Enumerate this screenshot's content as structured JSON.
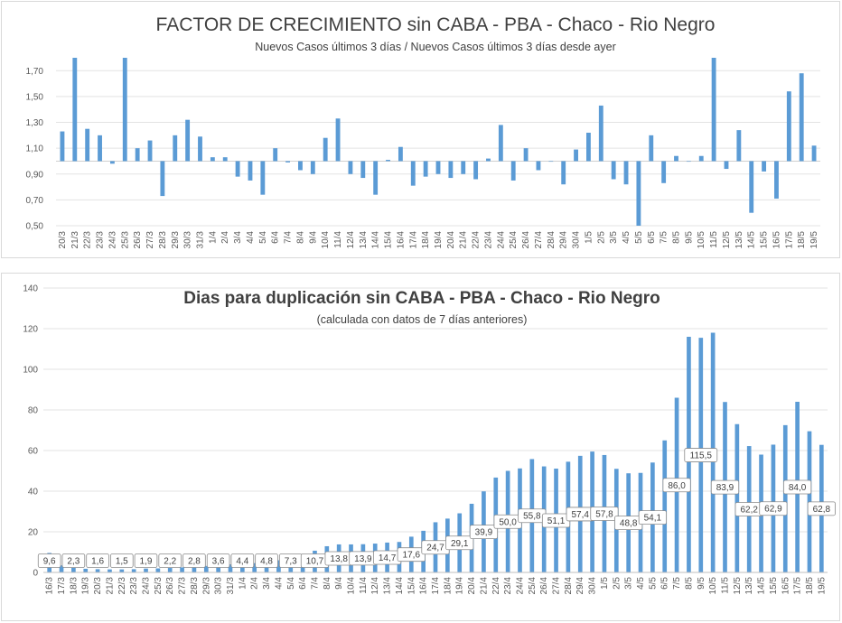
{
  "chart_data": [
    {
      "type": "bar",
      "title": "FACTOR DE CRECIMIENTO sin CABA - PBA - Chaco - Rio Negro",
      "subtitle": "Nuevos Casos últimos 3 días / Nuevos Casos últimos 3 días desde ayer",
      "baseline": 1.0,
      "ylim": [
        0.5,
        1.8
      ],
      "yticks": [
        "0,50",
        "0,70",
        "0,90",
        "1,10",
        "1,30",
        "1,50",
        "1,70"
      ],
      "ytick_values": [
        0.5,
        0.7,
        0.9,
        1.1,
        1.3,
        1.5,
        1.7
      ],
      "grid": true,
      "color": "#5b9bd5",
      "categories": [
        "20/3",
        "21/3",
        "22/3",
        "23/3",
        "24/3",
        "25/3",
        "26/3",
        "27/3",
        "28/3",
        "29/3",
        "30/3",
        "31/3",
        "1/4",
        "2/4",
        "3/4",
        "4/4",
        "5/4",
        "6/4",
        "7/4",
        "8/4",
        "9/4",
        "10/4",
        "11/4",
        "12/4",
        "13/4",
        "14/4",
        "15/4",
        "16/4",
        "17/4",
        "18/4",
        "19/4",
        "20/4",
        "21/4",
        "22/4",
        "23/4",
        "24/4",
        "25/4",
        "26/4",
        "27/4",
        "28/4",
        "29/4",
        "30/4",
        "1/5",
        "2/5",
        "3/5",
        "4/5",
        "5/5",
        "6/5",
        "7/5",
        "8/5",
        "9/5",
        "10/5",
        "11/5",
        "12/5",
        "13/5",
        "14/5",
        "15/5",
        "16/5",
        "17/5",
        "18/5",
        "19/5"
      ],
      "values": [
        1.23,
        1.8,
        1.25,
        1.2,
        0.98,
        1.8,
        1.1,
        1.16,
        0.73,
        1.2,
        1.32,
        1.19,
        1.03,
        1.03,
        0.88,
        0.85,
        0.74,
        1.1,
        0.99,
        0.93,
        0.9,
        1.18,
        1.33,
        0.9,
        0.87,
        0.74,
        1.01,
        1.11,
        0.81,
        0.88,
        0.9,
        0.87,
        0.9,
        0.86,
        1.02,
        1.28,
        0.85,
        1.1,
        0.93,
        1.0,
        0.82,
        1.09,
        1.22,
        1.43,
        0.86,
        0.82,
        0.5,
        1.2,
        0.83,
        1.04,
        1.0,
        1.04,
        1.8,
        0.94,
        1.24,
        0.6,
        0.92,
        0.71,
        1.54,
        1.68,
        1.12
      ]
    },
    {
      "type": "bar",
      "title": "Dias para duplicación sin CABA - PBA - Chaco - Rio Negro",
      "subtitle": "(calculada con datos de 7 días anteriores)",
      "ylim": [
        0,
        140
      ],
      "yticks": [
        "0",
        "20",
        "40",
        "60",
        "80",
        "100",
        "120",
        "140"
      ],
      "ytick_values": [
        0,
        20,
        40,
        60,
        80,
        100,
        120,
        140
      ],
      "grid": true,
      "color": "#5b9bd5",
      "categories": [
        "16/3",
        "17/3",
        "18/3",
        "19/3",
        "20/3",
        "21/3",
        "22/3",
        "23/3",
        "24/3",
        "25/3",
        "26/3",
        "27/3",
        "28/3",
        "29/3",
        "30/3",
        "31/3",
        "1/4",
        "2/4",
        "3/4",
        "4/4",
        "5/4",
        "6/4",
        "7/4",
        "8/4",
        "9/4",
        "10/4",
        "11/4",
        "12/4",
        "13/4",
        "14/4",
        "15/4",
        "16/4",
        "17/4",
        "18/4",
        "19/4",
        "20/4",
        "21/4",
        "22/4",
        "23/4",
        "24/4",
        "25/4",
        "26/4",
        "27/4",
        "28/4",
        "29/4",
        "30/4",
        "1/5",
        "2/5",
        "3/5",
        "4/5",
        "5/5",
        "6/5",
        "7/5",
        "8/5",
        "9/5",
        "10/5",
        "11/5",
        "12/5",
        "13/5",
        "14/5",
        "15/5",
        "16/5",
        "17/5",
        "18/5",
        "19/5"
      ],
      "values": [
        9.6,
        3.5,
        2.3,
        1.8,
        1.6,
        1.5,
        1.5,
        1.6,
        1.9,
        2.0,
        2.2,
        2.5,
        2.8,
        3.2,
        3.6,
        4.0,
        4.4,
        4.6,
        4.8,
        6.0,
        7.3,
        9.0,
        10.7,
        12.9,
        13.8,
        13.8,
        13.9,
        14.2,
        14.7,
        15.0,
        17.6,
        20.5,
        24.7,
        26.5,
        29.1,
        33.8,
        39.9,
        46.7,
        50.0,
        51.2,
        55.8,
        52.2,
        51.1,
        54.5,
        57.4,
        59.5,
        57.8,
        51.0,
        48.8,
        49.0,
        54.1,
        65.0,
        86.0,
        116.0,
        115.5,
        118.0,
        83.9,
        73.0,
        62.2,
        58.0,
        62.9,
        72.5,
        84.0,
        69.5,
        62.8
      ],
      "labels": [
        {
          "i": 0,
          "text": "9,6"
        },
        {
          "i": 2,
          "text": "2,3"
        },
        {
          "i": 4,
          "text": "1,6"
        },
        {
          "i": 6,
          "text": "1,5"
        },
        {
          "i": 8,
          "text": "1,9"
        },
        {
          "i": 10,
          "text": "2,2"
        },
        {
          "i": 12,
          "text": "2,8"
        },
        {
          "i": 14,
          "text": "3,6"
        },
        {
          "i": 16,
          "text": "4,4"
        },
        {
          "i": 18,
          "text": "4,8"
        },
        {
          "i": 20,
          "text": "7,3"
        },
        {
          "i": 22,
          "text": "10,7"
        },
        {
          "i": 24,
          "text": "13,8"
        },
        {
          "i": 26,
          "text": "13,9"
        },
        {
          "i": 28,
          "text": "14,7"
        },
        {
          "i": 30,
          "text": "17,6"
        },
        {
          "i": 32,
          "text": "24,7"
        },
        {
          "i": 34,
          "text": "29,1"
        },
        {
          "i": 36,
          "text": "39,9"
        },
        {
          "i": 38,
          "text": "50,0"
        },
        {
          "i": 40,
          "text": "55,8"
        },
        {
          "i": 42,
          "text": "51,1"
        },
        {
          "i": 44,
          "text": "57,4"
        },
        {
          "i": 46,
          "text": "57,8"
        },
        {
          "i": 48,
          "text": "48,8"
        },
        {
          "i": 50,
          "text": "54,1"
        },
        {
          "i": 52,
          "text": "86,0"
        },
        {
          "i": 54,
          "text": "115,5"
        },
        {
          "i": 56,
          "text": "83,9"
        },
        {
          "i": 58,
          "text": "62,2"
        },
        {
          "i": 60,
          "text": "62,9"
        },
        {
          "i": 62,
          "text": "84,0"
        },
        {
          "i": 64,
          "text": "62,8"
        }
      ]
    }
  ]
}
